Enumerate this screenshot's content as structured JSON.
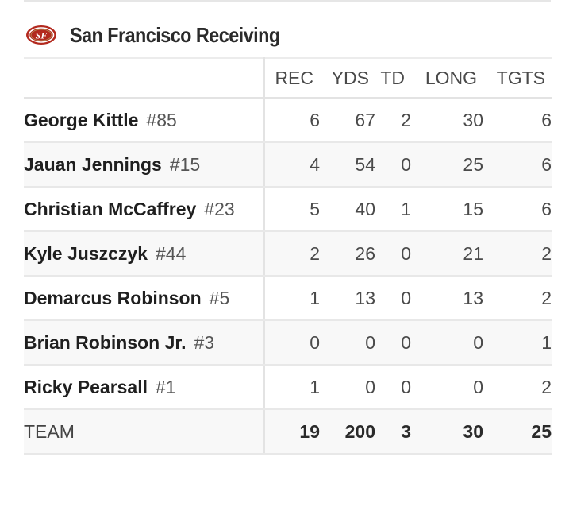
{
  "header": {
    "team_logo_icon": "49ers-logo-icon",
    "title": "San Francisco Receiving"
  },
  "table": {
    "columns": [
      "REC",
      "YDS",
      "TD",
      "LONG",
      "TGTS"
    ],
    "players": [
      {
        "name": "George Kittle",
        "number": "#85",
        "stats": [
          "6",
          "67",
          "2",
          "30",
          "6"
        ]
      },
      {
        "name": "Jauan Jennings",
        "number": "#15",
        "stats": [
          "4",
          "54",
          "0",
          "25",
          "6"
        ]
      },
      {
        "name": "Christian McCaffrey",
        "number": "#23",
        "stats": [
          "5",
          "40",
          "1",
          "15",
          "6"
        ]
      },
      {
        "name": "Kyle Juszczyk",
        "number": "#44",
        "stats": [
          "2",
          "26",
          "0",
          "21",
          "2"
        ]
      },
      {
        "name": "Demarcus Robinson",
        "number": "#5",
        "stats": [
          "1",
          "13",
          "0",
          "13",
          "2"
        ]
      },
      {
        "name": "Brian Robinson Jr.",
        "number": "#3",
        "stats": [
          "0",
          "0",
          "0",
          "0",
          "1"
        ]
      },
      {
        "name": "Ricky Pearsall",
        "number": "#1",
        "stats": [
          "1",
          "0",
          "0",
          "0",
          "2"
        ]
      }
    ],
    "team": {
      "label": "TEAM",
      "stats": [
        "19",
        "200",
        "3",
        "30",
        "25"
      ]
    }
  },
  "colors": {
    "logo_red": "#b3291e",
    "logo_gold": "#b3995d"
  }
}
